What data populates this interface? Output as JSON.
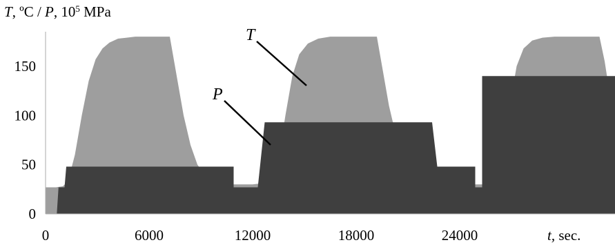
{
  "chart_data": {
    "type": "area",
    "ylabel_parts": {
      "T": "T",
      "unit1": ", ºC / ",
      "P": "P",
      "unit2": ", 10",
      "exp": "5",
      "unit3": " MPa"
    },
    "xlabel_parts": {
      "t": "t,",
      "unit": " sec."
    },
    "xlim": [
      0,
      33000
    ],
    "ylim": [
      0,
      185
    ],
    "x_ticks": [
      0,
      6000,
      12000,
      18000,
      24000
    ],
    "y_ticks": [
      0,
      50,
      100,
      150
    ],
    "series": [
      {
        "name": "T",
        "color": "#9e9e9e",
        "points": [
          [
            0,
            27
          ],
          [
            600,
            27
          ],
          [
            1000,
            28
          ],
          [
            1300,
            33
          ],
          [
            1700,
            60
          ],
          [
            2100,
            100
          ],
          [
            2500,
            135
          ],
          [
            2900,
            157
          ],
          [
            3300,
            168
          ],
          [
            3700,
            174
          ],
          [
            4200,
            178
          ],
          [
            4700,
            179
          ],
          [
            5200,
            180
          ],
          [
            7200,
            180
          ],
          [
            7600,
            140
          ],
          [
            8000,
            100
          ],
          [
            8400,
            70
          ],
          [
            8800,
            50
          ],
          [
            9300,
            38
          ],
          [
            9800,
            32
          ],
          [
            10500,
            30
          ],
          [
            11200,
            30
          ],
          [
            12000,
            30
          ],
          [
            13000,
            32
          ],
          [
            13500,
            55
          ],
          [
            13900,
            100
          ],
          [
            14300,
            140
          ],
          [
            14700,
            162
          ],
          [
            15200,
            173
          ],
          [
            15800,
            178
          ],
          [
            16500,
            180
          ],
          [
            19200,
            180
          ],
          [
            19500,
            150
          ],
          [
            19900,
            110
          ],
          [
            20300,
            80
          ],
          [
            20700,
            60
          ],
          [
            21200,
            47
          ],
          [
            21700,
            40
          ],
          [
            22500,
            35
          ],
          [
            23500,
            32
          ],
          [
            24500,
            30
          ],
          [
            25500,
            30
          ],
          [
            26000,
            30
          ],
          [
            26500,
            55
          ],
          [
            26900,
            110
          ],
          [
            27300,
            150
          ],
          [
            27700,
            168
          ],
          [
            28200,
            176
          ],
          [
            28800,
            179
          ],
          [
            29500,
            180
          ],
          [
            32100,
            180
          ],
          [
            32400,
            155
          ],
          [
            32800,
            110
          ],
          [
            33000,
            95
          ]
        ]
      },
      {
        "name": "P",
        "color": "#3f3f3f",
        "points": [
          [
            0,
            0
          ],
          [
            650,
            0
          ],
          [
            750,
            27
          ],
          [
            1100,
            27
          ],
          [
            1200,
            48
          ],
          [
            10900,
            48
          ],
          [
            10900,
            27
          ],
          [
            12300,
            27
          ],
          [
            12700,
            93
          ],
          [
            22400,
            93
          ],
          [
            22700,
            48
          ],
          [
            24900,
            48
          ],
          [
            24900,
            27
          ],
          [
            25300,
            27
          ],
          [
            25300,
            140
          ],
          [
            33000,
            140
          ]
        ]
      }
    ],
    "annotations": [
      {
        "text": "T",
        "series": "T"
      },
      {
        "text": "P",
        "series": "P"
      }
    ]
  }
}
